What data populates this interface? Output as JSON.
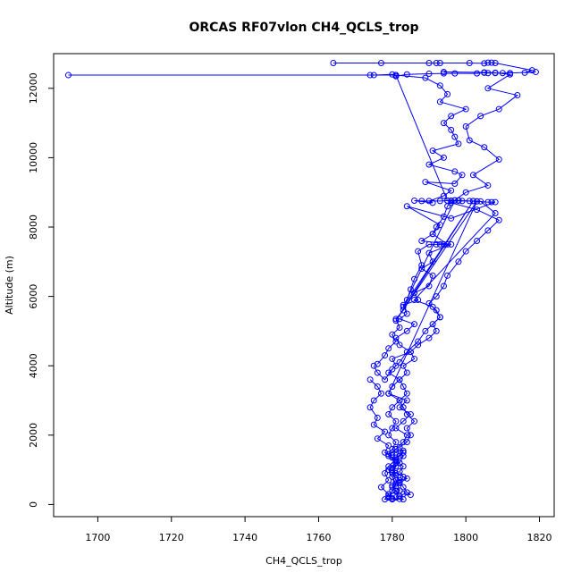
{
  "chart_data": {
    "type": "line",
    "title": "ORCAS RF07vlon CH4_QCLS_trop",
    "xlabel": "CH4_QCLS_trop",
    "ylabel": "Altitude (m)",
    "xlim": [
      1688,
      1824
    ],
    "ylim": [
      -350,
      13000
    ],
    "xticks": [
      1700,
      1720,
      1740,
      1760,
      1780,
      1800,
      1820
    ],
    "yticks": [
      0,
      2000,
      4000,
      6000,
      8000,
      10000,
      12000
    ],
    "grid": false,
    "legend": "none",
    "series": [
      {
        "color": "#0000ff",
        "marker": "circle-open",
        "points": [
          [
            1764,
            12730
          ],
          [
            1777,
            12730
          ],
          [
            1790,
            12730
          ],
          [
            1792,
            12730
          ],
          [
            1793,
            12730
          ],
          [
            1801,
            12730
          ],
          [
            1805,
            12720
          ],
          [
            1806,
            12740
          ],
          [
            1807,
            12740
          ],
          [
            1808,
            12730
          ],
          [
            1818,
            12520
          ],
          [
            1816,
            12450
          ],
          [
            1819,
            12470
          ],
          [
            1812,
            12440
          ],
          [
            1810,
            12440
          ],
          [
            1808,
            12440
          ],
          [
            1806,
            12440
          ],
          [
            1805,
            12450
          ],
          [
            1803,
            12430
          ],
          [
            1797,
            12430
          ],
          [
            1794,
            12430
          ],
          [
            1790,
            12420
          ],
          [
            1784,
            12400
          ],
          [
            1781,
            12350
          ],
          [
            1780,
            12400
          ],
          [
            1775,
            12380
          ],
          [
            1774,
            12380
          ],
          [
            1692,
            12380
          ],
          [
            1781,
            12380
          ],
          [
            1789,
            12300
          ],
          [
            1793,
            12080
          ],
          [
            1795,
            11830
          ],
          [
            1793,
            11610
          ],
          [
            1800,
            11400
          ],
          [
            1796,
            11200
          ],
          [
            1794,
            11000
          ],
          [
            1796,
            10800
          ],
          [
            1797,
            10600
          ],
          [
            1798,
            10400
          ],
          [
            1791,
            10200
          ],
          [
            1794,
            10000
          ],
          [
            1790,
            9800
          ],
          [
            1797,
            9600
          ],
          [
            1799,
            9500
          ],
          [
            1797,
            9250
          ],
          [
            1789,
            9300
          ],
          [
            1796,
            9050
          ],
          [
            1794,
            8900
          ],
          [
            1790,
            8750
          ],
          [
            1791,
            8700
          ],
          [
            1786,
            8760
          ],
          [
            1788,
            8750
          ],
          [
            1793,
            8750
          ],
          [
            1795,
            8760
          ],
          [
            1796,
            8760
          ],
          [
            1797,
            8770
          ],
          [
            1798,
            8770
          ],
          [
            1799,
            8750
          ],
          [
            1802,
            8750
          ],
          [
            1803,
            8740
          ],
          [
            1806,
            8720
          ],
          [
            1807,
            8720
          ],
          [
            1808,
            8720
          ],
          [
            1796,
            8250
          ],
          [
            1784,
            8600
          ],
          [
            1793,
            8060
          ],
          [
            1791,
            7800
          ],
          [
            1788,
            7600
          ],
          [
            1796,
            7500
          ],
          [
            1790,
            7250
          ],
          [
            1791,
            7000
          ],
          [
            1788,
            6800
          ],
          [
            1791,
            6600
          ],
          [
            1790,
            6300
          ],
          [
            1786,
            6100
          ],
          [
            1787,
            5900
          ],
          [
            1783,
            5750
          ],
          [
            1784,
            5500
          ],
          [
            1782,
            5350
          ],
          [
            1786,
            5200
          ],
          [
            1784,
            5000
          ],
          [
            1781,
            4800
          ],
          [
            1782,
            4600
          ],
          [
            1785,
            4400
          ],
          [
            1780,
            4200
          ],
          [
            1781,
            4000
          ],
          [
            1779,
            3800
          ],
          [
            1782,
            3600
          ],
          [
            1780,
            3400
          ],
          [
            1779,
            3200
          ],
          [
            1782,
            3000
          ],
          [
            1780,
            2800
          ],
          [
            1779,
            2600
          ],
          [
            1781,
            2400
          ],
          [
            1780,
            2200
          ],
          [
            1779,
            2000
          ],
          [
            1781,
            1800
          ],
          [
            1780,
            1600
          ],
          [
            1781,
            1500
          ],
          [
            1783,
            1400
          ],
          [
            1782,
            1200
          ],
          [
            1780,
            1000
          ],
          [
            1781,
            850
          ],
          [
            1782,
            700
          ],
          [
            1780,
            550
          ],
          [
            1781,
            400
          ],
          [
            1782,
            250
          ],
          [
            1783,
            150
          ],
          [
            1780,
            180
          ],
          [
            1779,
            250
          ],
          [
            1781,
            380
          ],
          [
            1780,
            500
          ],
          [
            1782,
            620
          ],
          [
            1784,
            750
          ],
          [
            1781,
            900
          ],
          [
            1780,
            1050
          ],
          [
            1782,
            1200
          ],
          [
            1781,
            1350
          ],
          [
            1783,
            1500
          ],
          [
            1782,
            1650
          ],
          [
            1784,
            1800
          ],
          [
            1785,
            2000
          ],
          [
            1784,
            2200
          ],
          [
            1786,
            2400
          ],
          [
            1784,
            2600
          ],
          [
            1783,
            2800
          ],
          [
            1782,
            3000
          ],
          [
            1784,
            3200
          ],
          [
            1783,
            3400
          ],
          [
            1782,
            3600
          ],
          [
            1784,
            3800
          ],
          [
            1783,
            4000
          ],
          [
            1786,
            4200
          ],
          [
            1785,
            4400
          ],
          [
            1787,
            4600
          ],
          [
            1790,
            4800
          ],
          [
            1792,
            5000
          ],
          [
            1791,
            5200
          ],
          [
            1793,
            5400
          ],
          [
            1792,
            5600
          ],
          [
            1790,
            5800
          ],
          [
            1792,
            6000
          ],
          [
            1794,
            6300
          ],
          [
            1795,
            6600
          ],
          [
            1798,
            7000
          ],
          [
            1800,
            7300
          ],
          [
            1803,
            7600
          ],
          [
            1806,
            7900
          ],
          [
            1809,
            8200
          ],
          [
            1803,
            8500
          ],
          [
            1796,
            8700
          ],
          [
            1800,
            9000
          ],
          [
            1806,
            9200
          ],
          [
            1802,
            9500
          ],
          [
            1809,
            9950
          ],
          [
            1805,
            10300
          ],
          [
            1801,
            10500
          ],
          [
            1800,
            10900
          ],
          [
            1804,
            11200
          ],
          [
            1809,
            11400
          ],
          [
            1814,
            11800
          ],
          [
            1806,
            12000
          ],
          [
            1812,
            12400
          ],
          [
            1808,
            12450
          ],
          [
            1805,
            12460
          ],
          [
            1794,
            12470
          ]
        ]
      },
      {
        "color": "#0000ff",
        "marker": "circle-open",
        "points": [
          [
            1781,
            12380
          ],
          [
            1795,
            8760
          ]
        ]
      },
      {
        "color": "#0000ff",
        "marker": "circle-open",
        "points": [
          [
            1797,
            8770
          ],
          [
            1783,
            5700
          ],
          [
            1802,
            8750
          ],
          [
            1781,
            5300
          ],
          [
            1803,
            8740
          ],
          [
            1779,
            3200
          ],
          [
            1784,
            3000
          ],
          [
            1782,
            2800
          ],
          [
            1785,
            2600
          ],
          [
            1783,
            2400
          ],
          [
            1781,
            2200
          ],
          [
            1784,
            2000
          ],
          [
            1783,
            1800
          ],
          [
            1781,
            1600
          ],
          [
            1779,
            1400
          ],
          [
            1781,
            1200
          ],
          [
            1779,
            1000
          ],
          [
            1780,
            800
          ],
          [
            1781,
            600
          ],
          [
            1780,
            400
          ],
          [
            1779,
            200
          ]
        ]
      },
      {
        "color": "#0000ff",
        "marker": "circle-open",
        "points": [
          [
            1774,
            3600
          ],
          [
            1776,
            3400
          ],
          [
            1777,
            3200
          ],
          [
            1775,
            3000
          ],
          [
            1774,
            2800
          ],
          [
            1776,
            2500
          ],
          [
            1775,
            2300
          ],
          [
            1778,
            2100
          ],
          [
            1776,
            1900
          ],
          [
            1779,
            1700
          ],
          [
            1778,
            1500
          ],
          [
            1781,
            1300
          ],
          [
            1779,
            1100
          ],
          [
            1778,
            900
          ],
          [
            1779,
            700
          ],
          [
            1777,
            500
          ],
          [
            1779,
            300
          ],
          [
            1778,
            150
          ],
          [
            1780,
            150
          ],
          [
            1782,
            160
          ],
          [
            1783,
            300
          ],
          [
            1785,
            280
          ],
          [
            1784,
            350
          ],
          [
            1783,
            500
          ],
          [
            1782,
            650
          ],
          [
            1783,
            800
          ],
          [
            1782,
            950
          ],
          [
            1783,
            1100
          ],
          [
            1781,
            1250
          ],
          [
            1782,
            1400
          ],
          [
            1783,
            1550
          ],
          [
            1780,
            1500
          ],
          [
            1779,
            1450
          ],
          [
            1780,
            1350
          ],
          [
            1781,
            1100
          ],
          [
            1780,
            900
          ],
          [
            1781,
            700
          ],
          [
            1782,
            400
          ],
          [
            1781,
            200
          ]
        ]
      },
      {
        "color": "#0000ff",
        "marker": "circle-open",
        "points": [
          [
            1776,
            4050
          ],
          [
            1778,
            4300
          ],
          [
            1779,
            4500
          ],
          [
            1781,
            4700
          ],
          [
            1780,
            4900
          ],
          [
            1782,
            5100
          ],
          [
            1781,
            5350
          ],
          [
            1783,
            5600
          ],
          [
            1784,
            5900
          ],
          [
            1785,
            6200
          ],
          [
            1786,
            6500
          ],
          [
            1788,
            6900
          ],
          [
            1787,
            7300
          ],
          [
            1790,
            7500
          ],
          [
            1792,
            7500
          ],
          [
            1793,
            7500
          ],
          [
            1794,
            7500
          ],
          [
            1795,
            7500
          ],
          [
            1791,
            7800
          ],
          [
            1792,
            8000
          ],
          [
            1794,
            8300
          ],
          [
            1795,
            8600
          ],
          [
            1796,
            8750
          ],
          [
            1798,
            8760
          ],
          [
            1801,
            8750
          ],
          [
            1804,
            8740
          ],
          [
            1808,
            8400
          ],
          [
            1786,
            5900
          ],
          [
            1791,
            5700
          ],
          [
            1793,
            5400
          ],
          [
            1789,
            5000
          ],
          [
            1787,
            4700
          ],
          [
            1784,
            4400
          ],
          [
            1782,
            4100
          ],
          [
            1780,
            3900
          ],
          [
            1778,
            3600
          ],
          [
            1776,
            3800
          ],
          [
            1775,
            4000
          ]
        ]
      }
    ]
  }
}
